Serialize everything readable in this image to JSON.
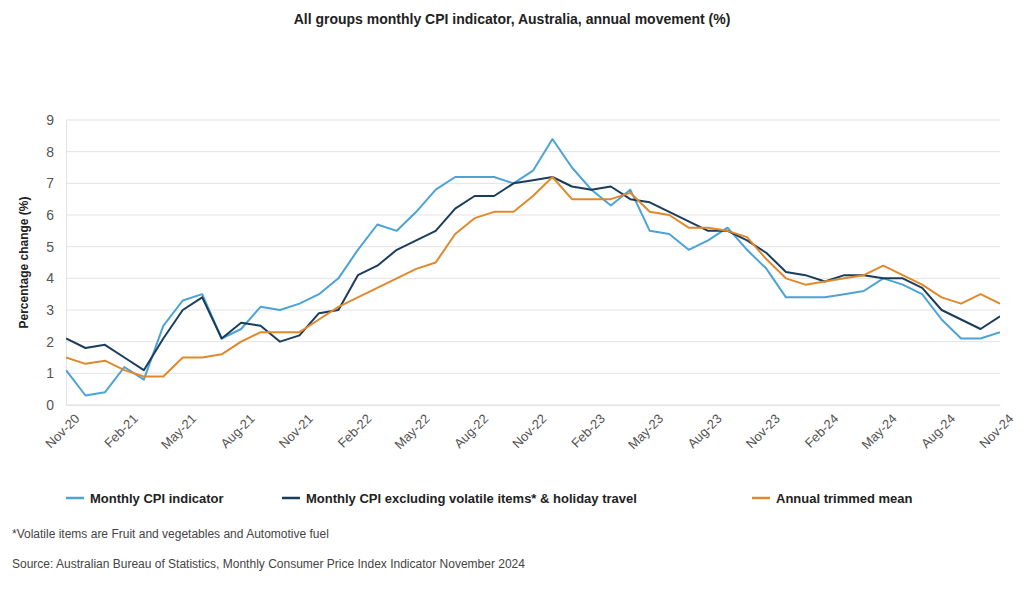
{
  "chart_data": {
    "type": "line",
    "title": "All groups monthly CPI indicator, Australia, annual movement (%)",
    "y_label": "Percentage change (%)",
    "categories": [
      "Nov-20",
      null,
      null,
      "Feb-21",
      null,
      null,
      "May-21",
      null,
      null,
      "Aug-21",
      null,
      null,
      "Nov-21",
      null,
      null,
      "Feb-22",
      null,
      null,
      "May-22",
      null,
      null,
      "Aug-22",
      null,
      null,
      "Nov-22",
      null,
      null,
      "Feb-23",
      null,
      null,
      "May-23",
      null,
      null,
      "Aug-23",
      null,
      null,
      "Nov-23",
      null,
      null,
      "Feb-24",
      null,
      null,
      "May-24",
      null,
      null,
      "Aug-24",
      null,
      null,
      "Nov-24"
    ],
    "series": [
      {
        "name": "Monthly CPI indicator",
        "color": "#4ba3d6",
        "values": [
          1.1,
          0.3,
          0.4,
          1.2,
          0.8,
          2.5,
          3.3,
          3.5,
          2.1,
          2.4,
          3.1,
          3.0,
          3.2,
          3.5,
          4.0,
          4.9,
          5.7,
          5.5,
          6.1,
          6.8,
          7.2,
          7.2,
          7.2,
          7.0,
          7.4,
          8.4,
          7.5,
          6.8,
          6.3,
          6.8,
          5.5,
          5.4,
          4.9,
          5.2,
          5.6,
          4.9,
          4.3,
          3.4,
          3.4,
          3.4,
          3.5,
          3.6,
          4.0,
          3.8,
          3.5,
          2.7,
          2.1,
          2.1,
          2.3
        ]
      },
      {
        "name": "Monthly CPI excluding volatile items* & holiday travel",
        "color": "#1b3d5c",
        "values": [
          2.1,
          1.8,
          1.9,
          1.5,
          1.1,
          2.1,
          3.0,
          3.4,
          2.1,
          2.6,
          2.5,
          2.0,
          2.2,
          2.9,
          3.0,
          4.1,
          4.4,
          4.9,
          5.2,
          5.5,
          6.2,
          6.6,
          6.6,
          7.0,
          7.1,
          7.2,
          6.9,
          6.8,
          6.9,
          6.5,
          6.4,
          6.1,
          5.8,
          5.5,
          5.5,
          5.2,
          4.8,
          4.2,
          4.1,
          3.9,
          4.1,
          4.1,
          4.0,
          4.0,
          3.7,
          3.0,
          2.7,
          2.4,
          2.8
        ]
      },
      {
        "name": "Annual trimmed mean",
        "color": "#e0892c",
        "values": [
          1.5,
          1.3,
          1.4,
          1.1,
          0.9,
          0.9,
          1.5,
          1.5,
          1.6,
          2.0,
          2.3,
          2.3,
          2.3,
          2.7,
          3.1,
          3.4,
          3.7,
          4.0,
          4.3,
          4.5,
          5.4,
          5.9,
          6.1,
          6.1,
          6.6,
          7.2,
          6.5,
          6.5,
          6.5,
          6.7,
          6.1,
          6.0,
          5.6,
          5.6,
          5.5,
          5.3,
          4.6,
          4.0,
          3.8,
          3.9,
          4.0,
          4.1,
          4.4,
          4.1,
          3.8,
          3.4,
          3.2,
          3.5,
          3.2
        ]
      }
    ],
    "ylim": [
      0,
      9
    ],
    "yticks": [
      0,
      1,
      2,
      3,
      4,
      5,
      6,
      7,
      8,
      9
    ],
    "grid": true,
    "legend": "bottom",
    "annotations": [
      "*Volatile items are Fruit and vegetables and Automotive fuel",
      "Source: Australian Bureau of Statistics, Monthly Consumer Price Index Indicator November 2024"
    ]
  }
}
